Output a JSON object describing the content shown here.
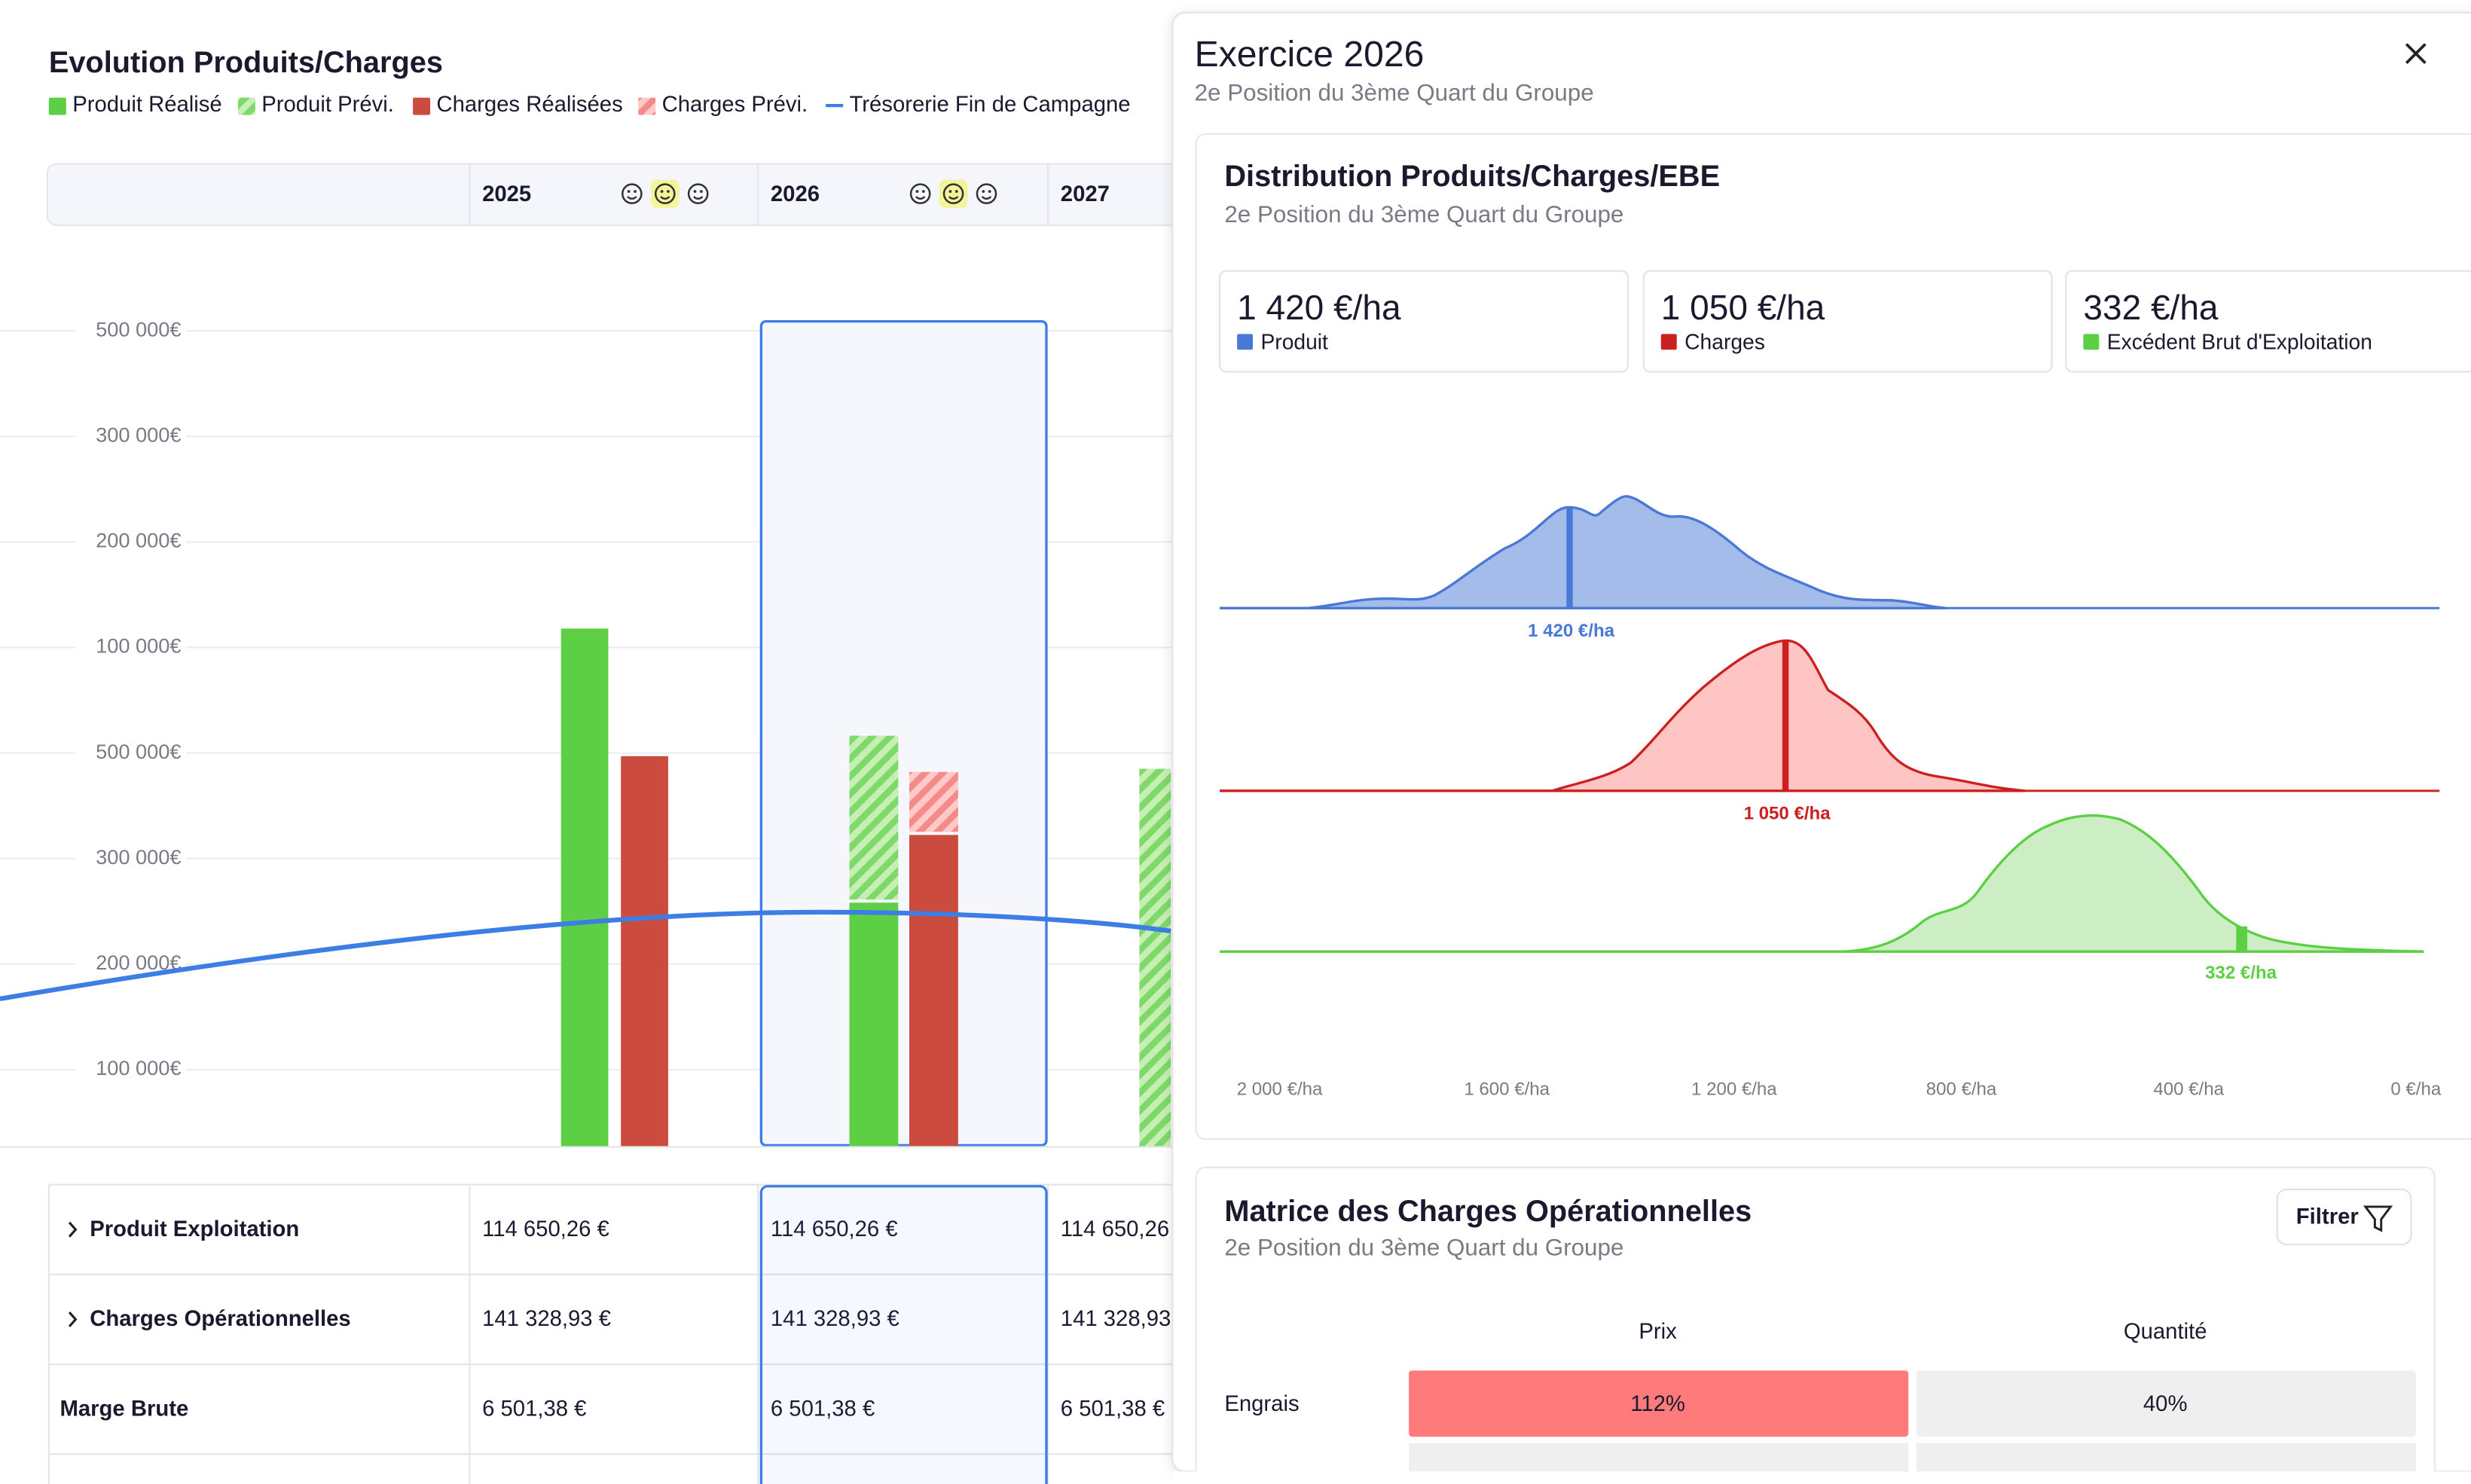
{
  "left": {
    "title": "Evolution Produits/Charges",
    "legend": [
      "Produit Réalisé",
      "Produit Prévi.",
      "Charges Réalisées",
      "Charges Prévi.",
      "Trésorerie Fin de Campagne"
    ],
    "years": [
      "2025",
      "2026",
      "2027"
    ],
    "axis_labels": [
      "500 000€",
      "300 000€",
      "200 000€",
      "100 000€",
      "500 000€",
      "300 000€",
      "200 000€",
      "100 000€"
    ],
    "table": {
      "rows": [
        {
          "label": "Produit Exploitation",
          "values": [
            "114 650,26 €",
            "114 650,26 €",
            "114 650,26"
          ]
        },
        {
          "label": "Charges Opérationnelles",
          "values": [
            "141 328,93 €",
            "141 328,93 €",
            "141 328,93"
          ]
        },
        {
          "label": "Marge Brute",
          "values": [
            "6 501,38 €",
            "6 501,38 €",
            "6 501,38 €"
          ]
        }
      ]
    }
  },
  "panel": {
    "title": "Exercice 2026",
    "subtitle": "2e Position du 3ème Quart du Groupe",
    "distribution": {
      "title": "Distribution Produits/Charges/EBE",
      "subtitle": "2e Position du 3ème Quart du Groupe",
      "stats": [
        {
          "value": "1 420 €/ha",
          "label": "Produit"
        },
        {
          "value": "1 050 €/ha",
          "label": "Charges"
        },
        {
          "value": "332 €/ha",
          "label": "Excédent Brut d'Exploitation"
        }
      ],
      "markers": [
        "1 420 €/ha",
        "1 050 €/ha",
        "332 €/ha"
      ],
      "x_labels": [
        "2 000 €/ha",
        "1 600 €/ha",
        "1 200 €/ha",
        "800 €/ha",
        "400 €/ha",
        "0 €/ha"
      ]
    },
    "matrix": {
      "title": "Matrice des Charges Opérationnelles",
      "subtitle": "2e Position du 3ème Quart du Groupe",
      "filter": "Filtrer",
      "columns": [
        "Prix",
        "Quantité"
      ],
      "rows": [
        {
          "label": "Engrais",
          "values": [
            "112%",
            "40%"
          ]
        }
      ]
    }
  }
}
